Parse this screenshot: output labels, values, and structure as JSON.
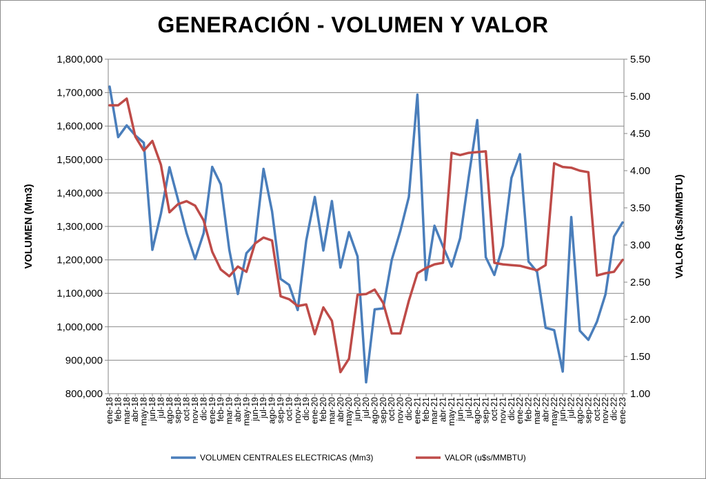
{
  "chart_data": {
    "type": "line",
    "title": "GENERACIÓN - VOLUMEN Y VALOR",
    "ylabel": "VOLUMEN (Mm3)",
    "y2label": "VALOR (u$s/MMBTU)",
    "ylim": [
      800000,
      1800000
    ],
    "y2lim": [
      1.0,
      5.5
    ],
    "y_ticks": [
      "800,000",
      "900,000",
      "1,000,000",
      "1,100,000",
      "1,200,000",
      "1,300,000",
      "1,400,000",
      "1,500,000",
      "1,600,000",
      "1,700,000",
      "1,800,000"
    ],
    "y2_ticks": [
      "1.00",
      "1.50",
      "2.00",
      "2.50",
      "3.00",
      "3.50",
      "4.00",
      "4.50",
      "5.00",
      "5.50"
    ],
    "grid": "horizontal",
    "legend_position": "bottom",
    "x": [
      "ene-18",
      "feb-18",
      "mar-18",
      "abr-18",
      "may-18",
      "jun-18",
      "jul-18",
      "ago-18",
      "sep-18",
      "oct-18",
      "nov-18",
      "dic-18",
      "ene-19",
      "feb-19",
      "mar-19",
      "abr-19",
      "may-19",
      "jun-19",
      "jul-19",
      "ago-19",
      "sep-19",
      "oct-19",
      "nov-19",
      "dic-19",
      "ene-20",
      "feb-20",
      "mar-20",
      "abr-20",
      "may-20",
      "jun-20",
      "jul-20",
      "ago-20",
      "sep-20",
      "oct-20",
      "nov-20",
      "dic-20",
      "ene-21",
      "feb-21",
      "mar-21",
      "abr-21",
      "may-21",
      "jun-21",
      "jul-21",
      "ago-21",
      "sep-21",
      "oct-21",
      "nov-21",
      "dic-21",
      "ene-22",
      "feb-22",
      "mar-22",
      "abr-22",
      "may-22",
      "jun-22",
      "jul-22",
      "ago-22",
      "sep-22",
      "oct-22",
      "nov-22",
      "dic-22",
      "ene-23"
    ],
    "series": [
      {
        "name": "VOLUMEN CENTRALES ELECTRICAS (Mm3)",
        "axis": "left",
        "color": "#4a7ebb",
        "values": [
          1718000,
          1567000,
          1602000,
          1572000,
          1550000,
          1230000,
          1338000,
          1477000,
          1380000,
          1280000,
          1202000,
          1280000,
          1478000,
          1426000,
          1230000,
          1098000,
          1220000,
          1248000,
          1472000,
          1345000,
          1143000,
          1125000,
          1050000,
          1258000,
          1388000,
          1228000,
          1376000,
          1177000,
          1283000,
          1210000,
          834000,
          1052000,
          1055000,
          1200000,
          1286000,
          1388000,
          1694000,
          1140000,
          1302000,
          1240000,
          1180000,
          1265000,
          1447000,
          1618000,
          1208000,
          1155000,
          1242000,
          1445000,
          1516000,
          1195000,
          1164000,
          997000,
          990000,
          866000,
          1328000,
          988000,
          961000,
          1015000,
          1097000,
          1270000,
          1312000
        ]
      },
      {
        "name": "VALOR (u$s/MMBTU)",
        "axis": "right",
        "color": "#be4b48",
        "values": [
          4.88,
          4.88,
          4.97,
          4.46,
          4.27,
          4.4,
          4.08,
          3.44,
          3.55,
          3.59,
          3.53,
          3.33,
          2.91,
          2.67,
          2.58,
          2.71,
          2.64,
          3.02,
          3.1,
          3.06,
          2.31,
          2.27,
          2.18,
          2.2,
          1.8,
          2.16,
          1.98,
          1.29,
          1.47,
          2.33,
          2.34,
          2.4,
          2.22,
          1.81,
          1.81,
          2.25,
          2.62,
          2.69,
          2.74,
          2.76,
          4.24,
          4.21,
          4.24,
          4.25,
          4.26,
          2.76,
          2.74,
          2.73,
          2.72,
          2.69,
          2.66,
          2.73,
          4.1,
          4.05,
          4.04,
          4.0,
          3.98,
          2.59,
          2.62,
          2.64,
          2.8
        ]
      }
    ]
  }
}
